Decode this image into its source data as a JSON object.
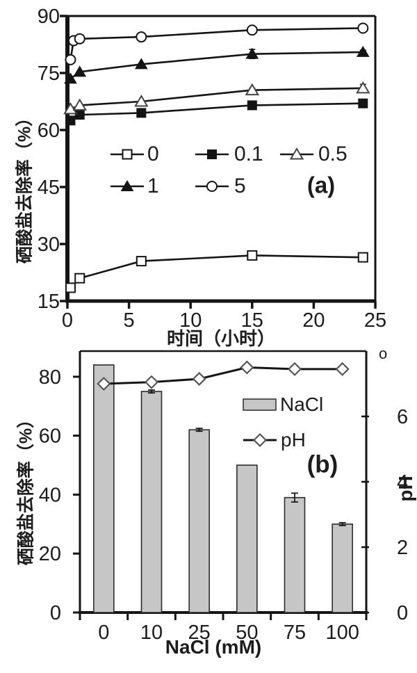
{
  "colors": {
    "text": "#1c1c1c",
    "line": "#141414",
    "bar_fill": "#c6c6c6",
    "bar_stroke": "#2b2b2b",
    "open_marker_fill": "#ffffff",
    "gray_marker_stroke": "#555555"
  },
  "chart_data": [
    {
      "id": "a",
      "type": "line",
      "panel_label": "(a)",
      "xlabel": "时间（小时）",
      "ylabel": "硒酸盐去除率（%）",
      "xlim": [
        0,
        25
      ],
      "ylim": [
        15,
        90
      ],
      "x_ticks": [
        0,
        5,
        10,
        15,
        20,
        25
      ],
      "y_ticks": [
        15,
        30,
        45,
        60,
        75,
        90
      ],
      "grid": false,
      "legend_position": "inside-upper-middle",
      "series": [
        {
          "name": "0",
          "marker": "square-open",
          "x": [
            0.25,
            1,
            6,
            15,
            24
          ],
          "y": [
            18.5,
            21,
            25.5,
            27,
            26.5
          ],
          "err": [
            1,
            0.8,
            1,
            0.7,
            0
          ]
        },
        {
          "name": "0.1",
          "marker": "square-filled",
          "x": [
            0.25,
            1,
            6,
            15,
            24
          ],
          "y": [
            62.5,
            64,
            64.5,
            66.5,
            67
          ],
          "err": [
            0,
            0,
            0,
            0,
            1
          ]
        },
        {
          "name": "0.5",
          "marker": "triangle-open",
          "x": [
            0.25,
            1,
            6,
            15,
            24
          ],
          "y": [
            65.5,
            66.5,
            67.5,
            70.5,
            71
          ],
          "err": [
            0,
            0,
            0,
            0.5,
            1
          ]
        },
        {
          "name": "1",
          "marker": "triangle-filled",
          "x": [
            0.25,
            1,
            6,
            15,
            24
          ],
          "y": [
            73.5,
            75.3,
            77.3,
            80,
            80.5
          ],
          "err": [
            0,
            0,
            0,
            1.2,
            0.5
          ]
        },
        {
          "name": "5",
          "marker": "circle-open",
          "x": [
            0.25,
            0.5,
            1,
            6,
            15,
            24
          ],
          "y": [
            78.5,
            83.5,
            84,
            84.5,
            86.3,
            86.8
          ],
          "err": [
            0,
            0,
            0.5,
            0,
            0.5,
            0
          ]
        }
      ]
    },
    {
      "id": "b",
      "type": "bar+line",
      "panel_label": "(b)",
      "xlabel": "NaCl (mM)",
      "ylabel_left": "硒酸盐去除率（%）",
      "ylabel_right": "pH",
      "categories": [
        "0",
        "10",
        "25",
        "50",
        "75",
        "100"
      ],
      "bar_series": {
        "name": "NaCl",
        "axis": "left",
        "values": [
          84,
          75,
          62,
          50,
          39,
          30
        ],
        "errors": [
          0,
          0.5,
          0.5,
          0,
          1.5,
          0.5
        ]
      },
      "line_series": {
        "name": "pH",
        "axis": "right",
        "marker": "diamond-open",
        "values": [
          7.0,
          7.05,
          7.15,
          7.5,
          7.45,
          7.45
        ]
      },
      "left_ticks": [
        0,
        20,
        40,
        60,
        80
      ],
      "left_range": [
        0,
        88.7
      ],
      "right_ticks": [
        {
          "value": 6,
          "label": "6"
        },
        {
          "value": 4,
          "label": "4"
        },
        {
          "value": 2,
          "label": "2"
        },
        {
          "value": 0,
          "label": "0"
        }
      ],
      "right_axis_top_mark": "o",
      "right_range": [
        0,
        8
      ],
      "grid": false,
      "legend_position": "inside-upper-right"
    }
  ]
}
